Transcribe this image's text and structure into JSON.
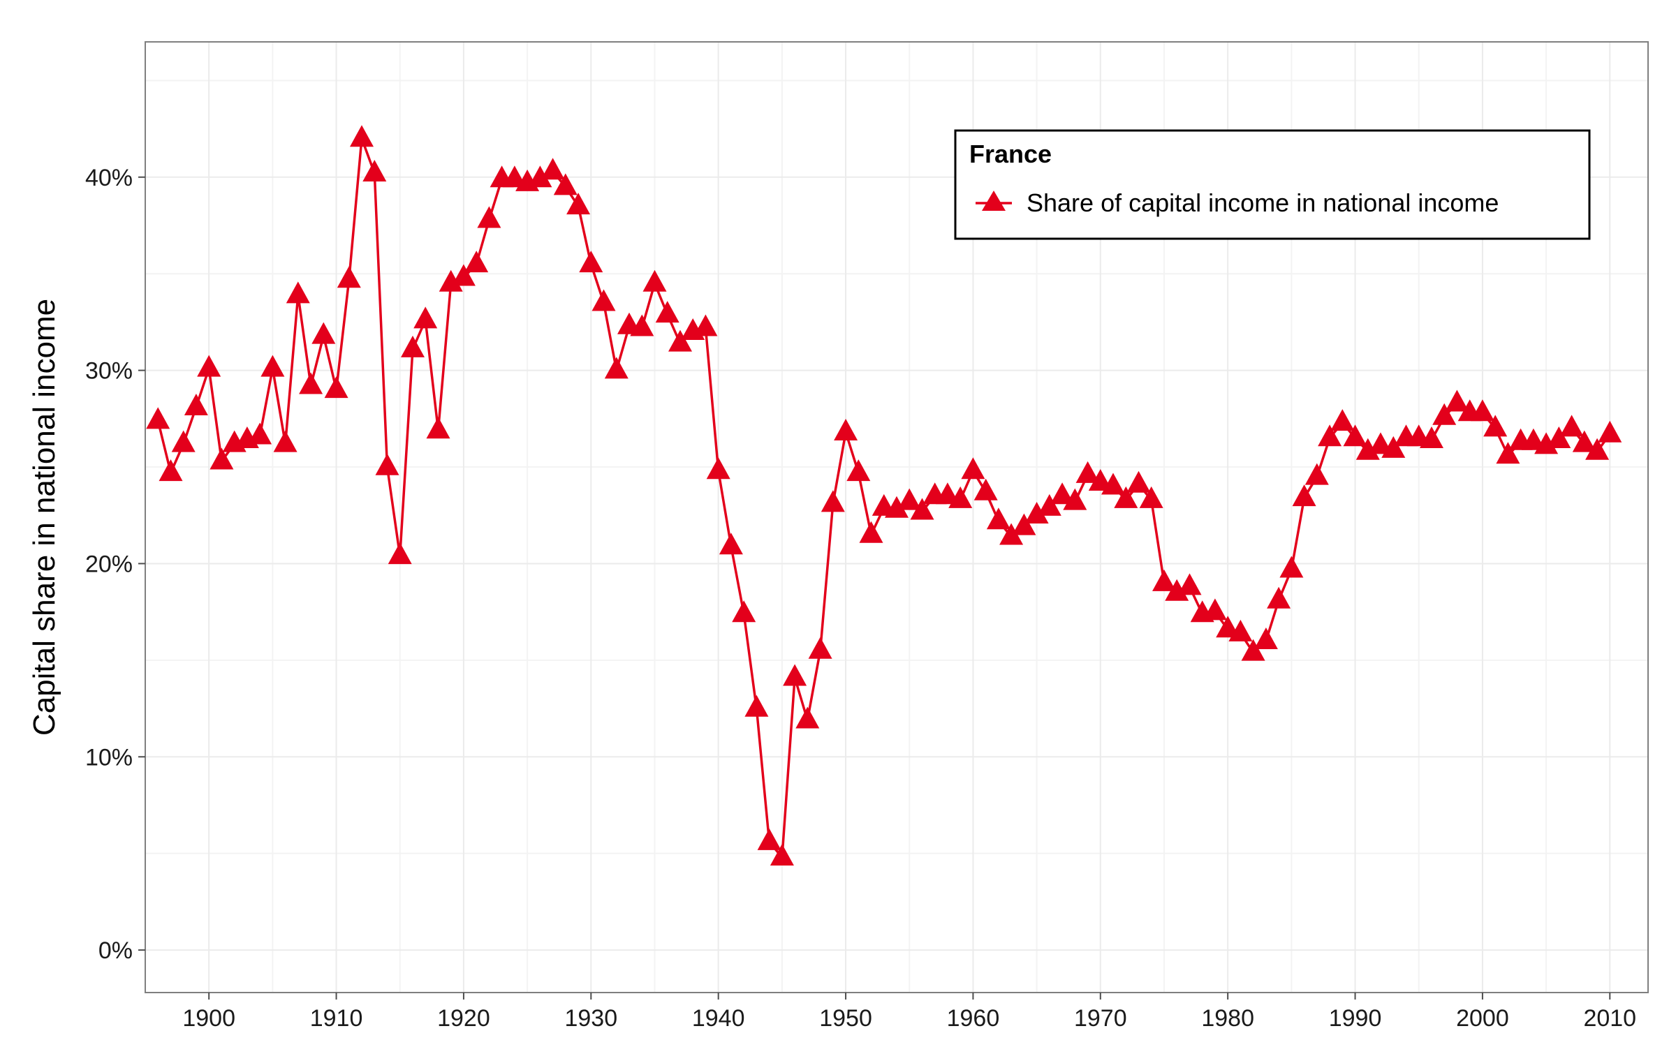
{
  "chart_data": {
    "type": "line",
    "title": "",
    "xlabel": "",
    "ylabel": "Capital share in national income",
    "xlim": [
      1895,
      2013
    ],
    "ylim": [
      -0.022,
      0.47
    ],
    "x_ticks": [
      1900,
      1910,
      1920,
      1930,
      1940,
      1950,
      1960,
      1970,
      1980,
      1990,
      2000,
      2010
    ],
    "x_tick_labels": [
      "1900",
      "1910",
      "1920",
      "1930",
      "1940",
      "1950",
      "1960",
      "1970",
      "1980",
      "1990",
      "2000",
      "2010"
    ],
    "y_ticks": [
      0,
      0.1,
      0.2,
      0.3,
      0.4
    ],
    "y_tick_labels": [
      "0%",
      "10%",
      "20%",
      "30%",
      "40%"
    ],
    "grid": true,
    "legend": {
      "title": "France",
      "placement": "top-right",
      "entries": [
        "Share of capital income in national income"
      ]
    },
    "colors": {
      "series": "#e3001b",
      "grid": "#ebebeb",
      "border": "#7f7f7f"
    },
    "series": [
      {
        "name": "Share of capital income in national income",
        "marker": "triangle",
        "x": [
          1896,
          1897,
          1898,
          1899,
          1900,
          1901,
          1902,
          1903,
          1904,
          1905,
          1906,
          1907,
          1908,
          1909,
          1910,
          1911,
          1912,
          1913,
          1914,
          1915,
          1916,
          1917,
          1918,
          1919,
          1920,
          1921,
          1922,
          1923,
          1924,
          1925,
          1926,
          1927,
          1928,
          1929,
          1930,
          1931,
          1932,
          1933,
          1934,
          1935,
          1936,
          1937,
          1938,
          1939,
          1940,
          1941,
          1942,
          1943,
          1944,
          1945,
          1946,
          1947,
          1948,
          1949,
          1950,
          1951,
          1952,
          1953,
          1954,
          1955,
          1956,
          1957,
          1958,
          1959,
          1960,
          1961,
          1962,
          1963,
          1964,
          1965,
          1966,
          1967,
          1968,
          1969,
          1970,
          1971,
          1972,
          1973,
          1974,
          1975,
          1976,
          1977,
          1978,
          1979,
          1980,
          1981,
          1982,
          1983,
          1984,
          1985,
          1986,
          1987,
          1988,
          1989,
          1990,
          1991,
          1992,
          1993,
          1994,
          1995,
          1996,
          1997,
          1998,
          1999,
          2000,
          2001,
          2002,
          2003,
          2004,
          2005,
          2006,
          2007,
          2008,
          2009,
          2010
        ],
        "values": [
          0.274,
          0.247,
          0.262,
          0.281,
          0.301,
          0.253,
          0.262,
          0.264,
          0.266,
          0.301,
          0.262,
          0.339,
          0.292,
          0.318,
          0.29,
          0.347,
          0.42,
          0.402,
          0.25,
          0.204,
          0.311,
          0.326,
          0.269,
          0.345,
          0.348,
          0.355,
          0.378,
          0.399,
          0.399,
          0.397,
          0.399,
          0.403,
          0.395,
          0.385,
          0.355,
          0.335,
          0.3,
          0.323,
          0.322,
          0.345,
          0.329,
          0.314,
          0.32,
          0.322,
          0.248,
          0.209,
          0.174,
          0.125,
          0.056,
          0.048,
          0.141,
          0.119,
          0.155,
          0.231,
          0.268,
          0.247,
          0.215,
          0.229,
          0.228,
          0.232,
          0.227,
          0.235,
          0.235,
          0.233,
          0.248,
          0.237,
          0.222,
          0.214,
          0.219,
          0.225,
          0.229,
          0.235,
          0.232,
          0.246,
          0.242,
          0.24,
          0.233,
          0.241,
          0.233,
          0.19,
          0.185,
          0.188,
          0.174,
          0.175,
          0.166,
          0.164,
          0.154,
          0.16,
          0.181,
          0.197,
          0.234,
          0.245,
          0.265,
          0.273,
          0.265,
          0.258,
          0.261,
          0.259,
          0.265,
          0.265,
          0.264,
          0.276,
          0.283,
          0.278,
          0.278,
          0.27,
          0.256,
          0.263,
          0.263,
          0.261,
          0.264,
          0.27,
          0.262,
          0.258,
          0.267
        ]
      }
    ]
  }
}
